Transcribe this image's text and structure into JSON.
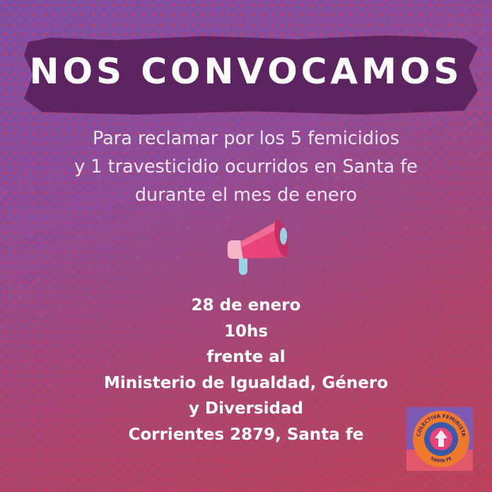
{
  "title": "NOS CONVOCAMOS",
  "subtitle_lines": [
    "Para reclamar por los 5 femicidios",
    "y 1 travesticidio ocurridos en Santa fe",
    "durante el mes de enero"
  ],
  "icon": "megaphone-icon",
  "details_lines": [
    "28 de enero",
    "10hs",
    "frente al",
    "Ministerio de Igualdad, Género",
    "y Diversidad",
    "Corrientes 2879, Santa fe"
  ],
  "logo": {
    "arc_top": "COLECTIVA FEMINISTA",
    "arc_bottom": "SANTA FE"
  },
  "colors": {
    "banner": "#5e2461",
    "background_top": "#7b4fa6",
    "background_bottom": "#b7435a",
    "megaphone": "#e8447a",
    "logo_orange": "#f07a2c",
    "logo_blue": "#3b59a8"
  }
}
